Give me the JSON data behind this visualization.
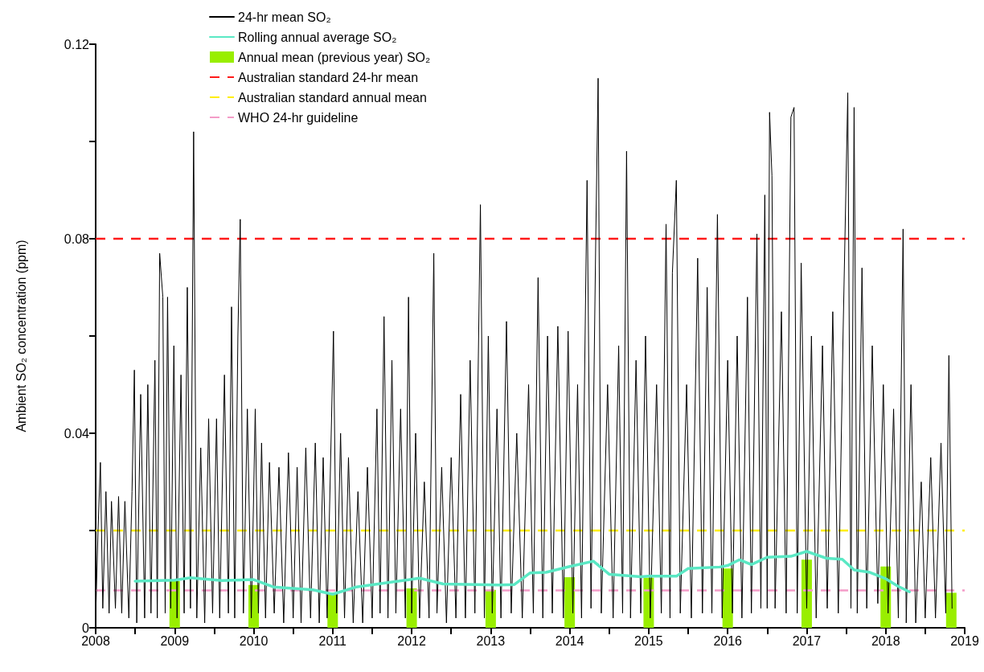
{
  "chart_data": {
    "type": "line",
    "ylabel": "Ambient SO₂ concentration (ppm)",
    "xlim": [
      2008,
      2019
    ],
    "xticks": [
      2008,
      {
        "value": 2008.5,
        "label": null
      },
      2009,
      {
        "value": 2009.5,
        "label": null
      },
      2010,
      {
        "value": 2010.5,
        "label": null
      },
      2011,
      {
        "value": 2011.5,
        "label": null
      },
      2012,
      {
        "value": 2012.5,
        "label": null
      },
      2013,
      {
        "value": 2013.5,
        "label": null
      },
      2014,
      {
        "value": 2014.5,
        "label": null
      },
      2015,
      {
        "value": 2015.5,
        "label": null
      },
      2016,
      {
        "value": 2016.5,
        "label": null
      },
      2017,
      {
        "value": 2017.5,
        "label": null
      },
      2018,
      {
        "value": 2018.5,
        "label": null
      },
      2019
    ],
    "ylim": [
      0,
      0.12
    ],
    "yticks": [
      0,
      {
        "value": 0.02,
        "label": null
      },
      0.04,
      {
        "value": 0.06,
        "label": null
      },
      0.08,
      {
        "value": 0.1,
        "label": null
      },
      0.12
    ],
    "grid": false,
    "legend": "top",
    "marker": "none",
    "series": [
      {
        "type": "line",
        "name": "24-hr mean SO₂",
        "color": "#000000",
        "x": [
          2008.0,
          2008.03,
          2008.06,
          2008.09,
          2008.13,
          2008.17,
          2008.2,
          2008.25,
          2008.29,
          2008.33,
          2008.37,
          2008.42,
          2008.46,
          2008.49,
          2008.52,
          2008.57,
          2008.62,
          2008.66,
          2008.7,
          2008.75,
          2008.78,
          2008.81,
          2008.85,
          2008.88,
          2008.91,
          2008.95,
          2008.99,
          2009.03,
          2009.08,
          2009.12,
          2009.16,
          2009.2,
          2009.24,
          2009.28,
          2009.33,
          2009.38,
          2009.43,
          2009.48,
          2009.53,
          2009.57,
          2009.63,
          2009.68,
          2009.72,
          2009.76,
          2009.8,
          2009.83,
          2009.87,
          2009.92,
          2009.97,
          2010.02,
          2010.06,
          2010.1,
          2010.15,
          2010.2,
          2010.26,
          2010.32,
          2010.38,
          2010.44,
          2010.5,
          2010.55,
          2010.6,
          2010.66,
          2010.72,
          2010.78,
          2010.83,
          2010.88,
          2010.93,
          2011.01,
          2011.05,
          2011.1,
          2011.15,
          2011.2,
          2011.26,
          2011.32,
          2011.38,
          2011.44,
          2011.5,
          2011.56,
          2011.6,
          2011.65,
          2011.7,
          2011.75,
          2011.8,
          2011.86,
          2011.92,
          2011.96,
          2012.0,
          2012.05,
          2012.1,
          2012.16,
          2012.22,
          2012.28,
          2012.32,
          2012.38,
          2012.44,
          2012.5,
          2012.56,
          2012.62,
          2012.68,
          2012.74,
          2012.8,
          2012.87,
          2012.92,
          2012.97,
          2013.02,
          2013.08,
          2013.13,
          2013.2,
          2013.26,
          2013.33,
          2013.4,
          2013.48,
          2013.54,
          2013.6,
          2013.66,
          2013.72,
          2013.78,
          2013.85,
          2013.92,
          2013.98,
          2014.04,
          2014.1,
          2014.15,
          2014.22,
          2014.27,
          2014.33,
          2014.36,
          2014.4,
          2014.48,
          2014.55,
          2014.62,
          2014.67,
          2014.72,
          2014.77,
          2014.84,
          2014.9,
          2014.96,
          2015.02,
          2015.1,
          2015.16,
          2015.22,
          2015.27,
          2015.3,
          2015.35,
          2015.4,
          2015.48,
          2015.54,
          2015.62,
          2015.68,
          2015.74,
          2015.8,
          2015.87,
          2015.93,
          2016.0,
          2016.06,
          2016.12,
          2016.18,
          2016.25,
          2016.3,
          2016.37,
          2016.42,
          2016.47,
          2016.5,
          2016.53,
          2016.56,
          2016.6,
          2016.68,
          2016.74,
          2016.8,
          2016.84,
          2016.88,
          2016.93,
          2017.0,
          2017.06,
          2017.12,
          2017.2,
          2017.26,
          2017.33,
          2017.4,
          2017.46,
          2017.52,
          2017.56,
          2017.6,
          2017.64,
          2017.7,
          2017.76,
          2017.83,
          2017.9,
          2017.97,
          2018.03,
          2018.1,
          2018.16,
          2018.22,
          2018.26,
          2018.32,
          2018.38,
          2018.45,
          2018.5,
          2018.57,
          2018.63,
          2018.7,
          2018.76,
          2018.8,
          2018.84
        ],
        "values": [
          0.002,
          0.02,
          0.034,
          0.004,
          0.028,
          0.003,
          0.026,
          0.004,
          0.027,
          0.003,
          0.026,
          0.002,
          0.028,
          0.053,
          0.001,
          0.048,
          0.002,
          0.05,
          0.003,
          0.055,
          0.002,
          0.077,
          0.068,
          0.003,
          0.068,
          0.004,
          0.058,
          0.002,
          0.052,
          0.003,
          0.07,
          0.004,
          0.102,
          0.002,
          0.037,
          0.001,
          0.043,
          0.003,
          0.043,
          0.002,
          0.052,
          0.003,
          0.066,
          0.002,
          0.06,
          0.084,
          0.003,
          0.045,
          0.002,
          0.045,
          0.003,
          0.038,
          0.002,
          0.034,
          0.003,
          0.033,
          0.001,
          0.036,
          0.002,
          0.033,
          0.001,
          0.037,
          0.002,
          0.038,
          0.001,
          0.035,
          0.002,
          0.061,
          0.003,
          0.04,
          0.002,
          0.035,
          0.001,
          0.028,
          0.001,
          0.033,
          0.002,
          0.045,
          0.003,
          0.064,
          0.002,
          0.055,
          0.003,
          0.045,
          0.002,
          0.068,
          0.003,
          0.04,
          0.002,
          0.03,
          0.002,
          0.077,
          0.003,
          0.033,
          0.001,
          0.035,
          0.002,
          0.048,
          0.002,
          0.055,
          0.003,
          0.087,
          0.002,
          0.06,
          0.003,
          0.045,
          0.002,
          0.063,
          0.003,
          0.04,
          0.002,
          0.05,
          0.003,
          0.072,
          0.002,
          0.06,
          0.003,
          0.062,
          0.002,
          0.061,
          0.003,
          0.05,
          0.002,
          0.092,
          0.004,
          0.08,
          0.113,
          0.003,
          0.05,
          0.002,
          0.058,
          0.003,
          0.098,
          0.002,
          0.055,
          0.003,
          0.06,
          0.002,
          0.05,
          0.003,
          0.083,
          0.002,
          0.073,
          0.092,
          0.003,
          0.05,
          0.002,
          0.076,
          0.003,
          0.07,
          0.003,
          0.085,
          0.002,
          0.055,
          0.003,
          0.06,
          0.002,
          0.068,
          0.003,
          0.081,
          0.004,
          0.089,
          0.004,
          0.106,
          0.093,
          0.004,
          0.065,
          0.003,
          0.105,
          0.107,
          0.003,
          0.075,
          0.004,
          0.06,
          0.002,
          0.058,
          0.004,
          0.065,
          0.003,
          0.06,
          0.11,
          0.004,
          0.107,
          0.003,
          0.074,
          0.004,
          0.058,
          0.005,
          0.05,
          0.003,
          0.045,
          0.002,
          0.082,
          0.001,
          0.05,
          0.001,
          0.03,
          0.002,
          0.035,
          0.002,
          0.038,
          0.003,
          0.056,
          0.004
        ]
      },
      {
        "type": "line",
        "name": "Rolling annual average SO₂",
        "color": "#5ae8c4",
        "x": [
          2008.5,
          2009.0,
          2009.2,
          2009.6,
          2010.0,
          2010.25,
          2010.75,
          2011.0,
          2011.3,
          2011.7,
          2012.1,
          2012.4,
          2013.1,
          2013.3,
          2013.5,
          2013.7,
          2014.0,
          2014.3,
          2014.5,
          2014.9,
          2015.0,
          2015.35,
          2015.5,
          2015.9,
          2016.0,
          2016.15,
          2016.3,
          2016.5,
          2016.8,
          2017.0,
          2017.25,
          2017.45,
          2017.6,
          2017.8,
          2018.0,
          2018.15,
          2018.3
        ],
        "values": [
          0.0096,
          0.0098,
          0.0103,
          0.0097,
          0.0099,
          0.0084,
          0.0078,
          0.0069,
          0.0084,
          0.0093,
          0.0102,
          0.009,
          0.0088,
          0.0089,
          0.0113,
          0.0114,
          0.0126,
          0.0137,
          0.011,
          0.0105,
          0.0106,
          0.0106,
          0.0122,
          0.0125,
          0.0128,
          0.014,
          0.013,
          0.0145,
          0.0147,
          0.0157,
          0.0143,
          0.0141,
          0.0119,
          0.0114,
          0.0101,
          0.0086,
          0.0074
        ]
      },
      {
        "type": "bar",
        "name": "Annual mean (previous year) SO₂",
        "color": "#99ee00",
        "x": [
          2009,
          2010,
          2011,
          2012,
          2013,
          2014,
          2015,
          2016,
          2017,
          2018,
          2018.83
        ],
        "values": [
          0.0096,
          0.0088,
          0.0072,
          0.0081,
          0.0078,
          0.0104,
          0.0103,
          0.0122,
          0.014,
          0.0126,
          0.0072
        ]
      }
    ],
    "ref_lines": [
      {
        "axis": "y",
        "value": 0.08,
        "label": "Australian standard 24-hr mean",
        "color": "#ff1a1a",
        "line_style": "dashed"
      },
      {
        "axis": "y",
        "value": 0.02,
        "label": "Australian standard annual mean",
        "color": "#ffee00",
        "line_style": "dashed"
      },
      {
        "axis": "y",
        "value": 0.0077,
        "label": "WHO 24-hr guideline",
        "color": "#f49cc8",
        "line_style": "dashed"
      }
    ]
  }
}
